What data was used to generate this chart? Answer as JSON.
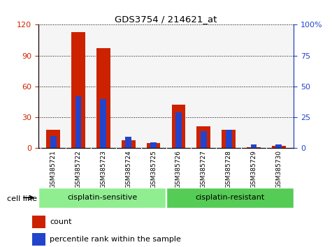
{
  "title": "GDS3754 / 214621_at",
  "samples": [
    "GSM385721",
    "GSM385722",
    "GSM385723",
    "GSM385724",
    "GSM385725",
    "GSM385726",
    "GSM385727",
    "GSM385728",
    "GSM385729",
    "GSM385730"
  ],
  "count_values": [
    18,
    113,
    97,
    8,
    5,
    42,
    21,
    18,
    1,
    2
  ],
  "percentile_values": [
    10,
    42,
    40,
    9,
    5,
    29,
    14,
    15,
    3,
    3
  ],
  "groups": [
    {
      "label": "cisplatin-sensitive",
      "start": 0,
      "end": 5,
      "color": "#90ee90"
    },
    {
      "label": "cisplatin-resistant",
      "start": 5,
      "end": 10,
      "color": "#55cc55"
    }
  ],
  "group_label": "cell line",
  "count_color": "#cc2200",
  "percentile_color": "#2244cc",
  "bar_width": 0.55,
  "ylim_left": [
    0,
    120
  ],
  "ylim_right": [
    0,
    100
  ],
  "yticks_left": [
    0,
    30,
    60,
    90,
    120
  ],
  "yticks_right": [
    0,
    25,
    50,
    75,
    100
  ],
  "ytick_labels_right": [
    "0",
    "25",
    "50",
    "75",
    "100%"
  ],
  "bg_color": "#ffffff",
  "plot_bg": "#f5f5f5",
  "tick_label_color_left": "#cc2200",
  "tick_label_color_right": "#2244cc",
  "legend_count": "count",
  "legend_percentile": "percentile rank within the sample",
  "xtick_bg": "#d0d0d0"
}
